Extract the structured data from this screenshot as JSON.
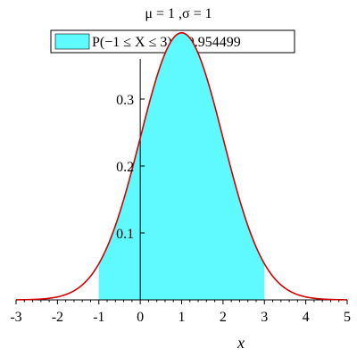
{
  "chart_data": {
    "type": "area",
    "title": "μ = 1 ,σ = 1",
    "legend": {
      "label": "P(−1 ≤ X ≤ 3) = 0.954499",
      "placement": "top-center"
    },
    "distribution": {
      "kind": "normal",
      "mu": 1,
      "sigma": 1
    },
    "shaded_interval": [
      -1,
      3
    ],
    "xlabel": "x",
    "ylabel": "",
    "xlim": [
      -3,
      5
    ],
    "ylim": [
      0,
      0.4
    ],
    "xticks": [
      {
        "value": -3,
        "label": "-3"
      },
      {
        "value": -2,
        "label": "-2"
      },
      {
        "value": -1,
        "label": "-1"
      },
      {
        "value": 0,
        "label": "0"
      },
      {
        "value": 1,
        "label": "1"
      },
      {
        "value": 2,
        "label": "2"
      },
      {
        "value": 3,
        "label": "3"
      },
      {
        "value": 4,
        "label": "4"
      },
      {
        "value": 5,
        "label": "5"
      }
    ],
    "yticks": [
      {
        "value": 0.1,
        "label": "0.1"
      },
      {
        "value": 0.2,
        "label": "0.2"
      },
      {
        "value": 0.3,
        "label": "0.3"
      }
    ],
    "colors": {
      "curve": "#d20000",
      "fill": "#5ffaff",
      "axes": "#000000"
    },
    "grid": false
  }
}
